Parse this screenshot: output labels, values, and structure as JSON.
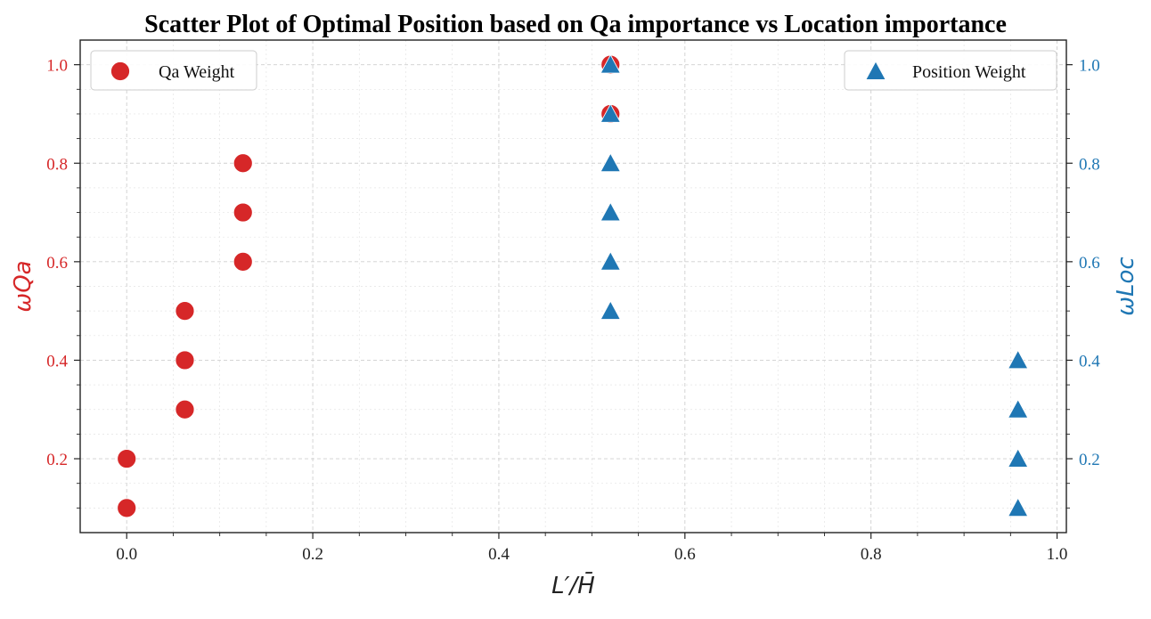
{
  "chart_data": {
    "type": "scatter",
    "title": "Scatter Plot of Optimal Position based on Qa importance vs Location importance",
    "xlabel": "L′/H̄",
    "ylabel_left": "ωQa",
    "ylabel_right": "ωLoc",
    "xlim": [
      -0.05,
      1.01
    ],
    "ylim": [
      0.05,
      1.05
    ],
    "xticks": [
      "0.0",
      "0.2",
      "0.4",
      "0.6",
      "0.8",
      "1.0"
    ],
    "yticks": [
      "0.2",
      "0.4",
      "0.6",
      "0.8",
      "1.0"
    ],
    "yticks_right": [
      "0.2",
      "0.4",
      "0.6",
      "0.8",
      "1.0"
    ],
    "grid": true,
    "series": [
      {
        "name": "Qa Weight",
        "axis": "left",
        "marker": "circle",
        "color": "#d62728",
        "points": [
          [
            0.0,
            0.1
          ],
          [
            0.0,
            0.2
          ],
          [
            0.0625,
            0.3
          ],
          [
            0.0625,
            0.4
          ],
          [
            0.0625,
            0.5
          ],
          [
            0.125,
            0.6
          ],
          [
            0.125,
            0.7
          ],
          [
            0.125,
            0.8
          ],
          [
            0.52,
            0.9
          ],
          [
            0.52,
            1.0
          ]
        ]
      },
      {
        "name": "Position Weight",
        "axis": "right",
        "marker": "triangle",
        "color": "#1f77b4",
        "points": [
          [
            0.958,
            0.1
          ],
          [
            0.958,
            0.2
          ],
          [
            0.958,
            0.3
          ],
          [
            0.958,
            0.4
          ],
          [
            0.52,
            0.5
          ],
          [
            0.52,
            0.6
          ],
          [
            0.52,
            0.7
          ],
          [
            0.52,
            0.8
          ],
          [
            0.52,
            0.9
          ],
          [
            0.52,
            1.0
          ]
        ]
      }
    ],
    "legend_left_position": "top-left",
    "legend_right_position": "top-right",
    "left_axis_color": "#d62728",
    "right_axis_color": "#1f77b4"
  }
}
